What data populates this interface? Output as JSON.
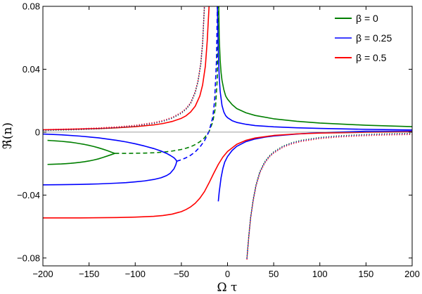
{
  "chart_data": {
    "type": "line",
    "xlabel": "Ω τ",
    "ylabel": "ℜ(n)",
    "xlim": [
      -200,
      200
    ],
    "ylim": [
      -0.085,
      0.08
    ],
    "x_ticks": [
      -200,
      -150,
      -100,
      -50,
      0,
      50,
      100,
      150,
      200
    ],
    "y_ticks": [
      -0.08,
      -0.04,
      0,
      0.04,
      0.08
    ],
    "x_tick_labels": [
      "−200",
      "−150",
      "−100",
      "−50",
      "0",
      "50",
      "100",
      "150",
      "200"
    ],
    "y_tick_labels": [
      "−0.08",
      "−0.04",
      "0",
      "0.04",
      "0.08"
    ],
    "grid": false,
    "zero_line": true,
    "legend_position": "top-right",
    "legend": [
      {
        "label": "β = 0",
        "color": "#007f00"
      },
      {
        "label": "β = 0.25",
        "color": "#0000ff"
      },
      {
        "label": "β = 0.5",
        "color": "#ff0000"
      }
    ],
    "series": [
      {
        "beta": 0,
        "color": "#007f00",
        "style": "solid",
        "x": [
          -195,
          -190,
          -185,
          -180,
          -175,
          -170,
          -165,
          -160,
          -155,
          -150,
          -145,
          -140,
          -135,
          -130,
          -125,
          -122
        ],
        "y": [
          -0.0052,
          -0.0054,
          -0.0056,
          -0.0058,
          -0.0061,
          -0.0064,
          -0.0068,
          -0.0073,
          -0.0078,
          -0.0084,
          -0.0091,
          -0.0099,
          -0.0108,
          -0.0118,
          -0.0129,
          -0.0135
        ]
      },
      {
        "beta": 0,
        "color": "#007f00",
        "style": "solid",
        "x": [
          -195,
          -190,
          -185,
          -180,
          -175,
          -170,
          -165,
          -160,
          -155,
          -150,
          -145,
          -140,
          -135,
          -130,
          -125,
          -122
        ],
        "y": [
          -0.0205,
          -0.0204,
          -0.0203,
          -0.0202,
          -0.02,
          -0.0198,
          -0.0195,
          -0.0192,
          -0.0188,
          -0.0183,
          -0.0177,
          -0.017,
          -0.0161,
          -0.0151,
          -0.0141,
          -0.0135
        ]
      },
      {
        "beta": 0,
        "color": "#007f00",
        "style": "dashed",
        "x": [
          -122,
          -110,
          -100,
          -90,
          -80,
          -70,
          -60,
          -50,
          -45,
          -40,
          -35,
          -30,
          -25,
          -20,
          -16,
          -13,
          -11,
          -10
        ],
        "y": [
          -0.0135,
          -0.0135,
          -0.0134,
          -0.0133,
          -0.0131,
          -0.0127,
          -0.012,
          -0.011,
          -0.0102,
          -0.0093,
          -0.0079,
          -0.0061,
          -0.0036,
          0.0004,
          0.0065,
          0.016,
          0.035,
          0.08
        ]
      },
      {
        "beta": 0,
        "color": "#007f00",
        "style": "solid",
        "x": [
          -9.5,
          -9,
          -8,
          -7,
          -6,
          -4,
          -2,
          0,
          5,
          10,
          20,
          30,
          50,
          75,
          100,
          150,
          200
        ],
        "y": [
          0.08,
          0.06,
          0.046,
          0.038,
          0.033,
          0.027,
          0.023,
          0.021,
          0.0175,
          0.015,
          0.0123,
          0.0106,
          0.0085,
          0.0069,
          0.0058,
          0.0044,
          0.0035
        ]
      },
      {
        "beta": 0.25,
        "color": "#0000ff",
        "style": "solid",
        "x": [
          -200,
          -180,
          -160,
          -140,
          -120,
          -110,
          -100,
          -90,
          -80,
          -72,
          -66,
          -62,
          -58,
          -56,
          -55
        ],
        "y": [
          -0.0012,
          -0.0017,
          -0.0025,
          -0.0036,
          -0.0052,
          -0.0062,
          -0.0074,
          -0.0088,
          -0.0104,
          -0.012,
          -0.0135,
          -0.0148,
          -0.0163,
          -0.0175,
          -0.0185
        ]
      },
      {
        "beta": 0.25,
        "color": "#0000ff",
        "style": "solid",
        "x": [
          -200,
          -180,
          -160,
          -140,
          -120,
          -110,
          -100,
          -90,
          -80,
          -72,
          -66,
          -62,
          -58,
          -56,
          -55
        ],
        "y": [
          -0.0335,
          -0.0334,
          -0.0332,
          -0.0329,
          -0.0324,
          -0.0321,
          -0.0316,
          -0.031,
          -0.0301,
          -0.029,
          -0.0276,
          -0.0261,
          -0.0233,
          -0.0207,
          -0.0185
        ]
      },
      {
        "beta": 0.25,
        "color": "#0000ff",
        "style": "dashed",
        "x": [
          -55,
          -50,
          -45,
          -40,
          -35,
          -30,
          -25,
          -20,
          -16,
          -14,
          -12,
          -11
        ],
        "y": [
          -0.0185,
          -0.0175,
          -0.0163,
          -0.0147,
          -0.0125,
          -0.0095,
          -0.0055,
          0.0005,
          0.0095,
          0.02,
          0.045,
          0.08
        ]
      },
      {
        "beta": 0.25,
        "color": "#0000ff",
        "style": "solid",
        "x": [
          -11,
          -10,
          -9,
          -8,
          -6,
          -4,
          -2,
          0,
          5,
          10,
          20,
          30,
          50,
          75,
          100,
          150,
          200
        ],
        "y": [
          0.08,
          0.052,
          0.035,
          0.026,
          0.017,
          0.0128,
          0.0105,
          0.0092,
          0.0073,
          0.0062,
          0.005,
          0.0042,
          0.0034,
          0.0028,
          0.0024,
          0.0018,
          0.0014
        ]
      },
      {
        "beta": 0.25,
        "color": "#0000ff",
        "style": "solid",
        "x": [
          200,
          150,
          100,
          75,
          50,
          40,
          30,
          20,
          10,
          5,
          0,
          -3,
          -5,
          -7,
          -9,
          -10
        ],
        "y": [
          0.0006,
          0.0006,
          -0.0003,
          -0.0012,
          -0.0024,
          -0.0032,
          -0.0043,
          -0.006,
          -0.009,
          -0.0116,
          -0.0155,
          -0.019,
          -0.023,
          -0.029,
          -0.038,
          -0.044
        ]
      },
      {
        "beta": 0.5,
        "color": "#ff0000",
        "style": "solid",
        "x": [
          -200,
          -180,
          -160,
          -140,
          -120,
          -100,
          -80,
          -70,
          -60,
          -50,
          -45,
          -40,
          -35,
          -30,
          -27,
          -24,
          -22,
          -20
        ],
        "y": [
          0.0015,
          0.0017,
          0.002,
          0.0023,
          0.0028,
          0.0035,
          0.0046,
          0.0055,
          0.0068,
          0.0088,
          0.0104,
          0.0128,
          0.0165,
          0.023,
          0.03,
          0.042,
          0.058,
          0.08
        ]
      },
      {
        "beta": 0.5,
        "color": "#ff0000",
        "style": "solid",
        "x": [
          -200,
          -160,
          -120,
          -100,
          -80,
          -70,
          -60,
          -50,
          -45,
          -40,
          -35,
          -30,
          -25,
          -20,
          -15,
          -10,
          -5,
          0,
          10,
          20,
          30,
          50,
          75,
          100,
          150,
          200
        ],
        "y": [
          -0.0545,
          -0.0545,
          -0.0543,
          -0.054,
          -0.0535,
          -0.053,
          -0.0521,
          -0.0505,
          -0.0492,
          -0.0475,
          -0.0452,
          -0.042,
          -0.0378,
          -0.0322,
          -0.0262,
          -0.0205,
          -0.0158,
          -0.0123,
          -0.0077,
          -0.0052,
          -0.0037,
          -0.0021,
          -0.0011,
          -0.0006,
          -0.0001,
          0.0002
        ]
      },
      {
        "beta": 0,
        "color": "#007f00",
        "style": "dotted",
        "x": [
          -200,
          -180,
          -160,
          -140,
          -120,
          -100,
          -80,
          -70,
          -60,
          -50,
          -45,
          -40,
          -35,
          -32,
          -29,
          -27,
          -25
        ],
        "y": [
          0.001,
          0.0013,
          0.0016,
          0.0021,
          0.0028,
          0.0038,
          0.0055,
          0.0068,
          0.0088,
          0.012,
          0.0145,
          0.018,
          0.025,
          0.032,
          0.043,
          0.056,
          0.08
        ]
      },
      {
        "beta": 0.25,
        "color": "#0000ff",
        "style": "dotted",
        "x": [
          -200,
          -180,
          -160,
          -140,
          -120,
          -100,
          -80,
          -70,
          -60,
          -50,
          -45,
          -40,
          -35,
          -32,
          -29,
          -27,
          -25
        ],
        "y": [
          0.0013,
          0.0016,
          0.0019,
          0.0024,
          0.0031,
          0.0041,
          0.0058,
          0.0071,
          0.0091,
          0.0123,
          0.0148,
          0.0184,
          0.0255,
          0.0325,
          0.0435,
          0.0565,
          0.0805
        ]
      },
      {
        "beta": 0.5,
        "color": "#ff0000",
        "style": "dotted",
        "x": [
          -200,
          -180,
          -160,
          -140,
          -120,
          -100,
          -80,
          -70,
          -60,
          -50,
          -45,
          -40,
          -35,
          -32,
          -29,
          -27,
          -25
        ],
        "y": [
          0.0016,
          0.0019,
          0.0022,
          0.0027,
          0.0034,
          0.0044,
          0.0061,
          0.0074,
          0.0094,
          0.0126,
          0.0151,
          0.0187,
          0.0258,
          0.0328,
          0.0438,
          0.0568,
          0.081
        ]
      },
      {
        "beta": 0,
        "color": "#007f00",
        "style": "dotted",
        "x": [
          21,
          23,
          25,
          28,
          31,
          35,
          40,
          45,
          50,
          60,
          70,
          80,
          100,
          120,
          140,
          160,
          180,
          200
        ],
        "y": [
          -0.08,
          -0.066,
          -0.054,
          -0.042,
          -0.033,
          -0.025,
          -0.019,
          -0.0152,
          -0.0125,
          -0.0088,
          -0.0066,
          -0.0051,
          -0.0033,
          -0.0023,
          -0.0017,
          -0.0012,
          -0.0009,
          -0.0007
        ]
      },
      {
        "beta": 0.25,
        "color": "#0000ff",
        "style": "dotted",
        "x": [
          21,
          23,
          25,
          28,
          31,
          35,
          40,
          45,
          50,
          60,
          70,
          80,
          100,
          120,
          140,
          160,
          180,
          200
        ],
        "y": [
          -0.0805,
          -0.0665,
          -0.0545,
          -0.0425,
          -0.0335,
          -0.0255,
          -0.0195,
          -0.0156,
          -0.0129,
          -0.0092,
          -0.007,
          -0.0055,
          -0.0037,
          -0.0027,
          -0.0021,
          -0.0016,
          -0.0013,
          -0.0011
        ]
      },
      {
        "beta": 0.5,
        "color": "#ff0000",
        "style": "dotted",
        "x": [
          21,
          23,
          25,
          28,
          31,
          35,
          40,
          45,
          50,
          60,
          70,
          80,
          100,
          120,
          140,
          160,
          180,
          200
        ],
        "y": [
          -0.081,
          -0.067,
          -0.055,
          -0.043,
          -0.034,
          -0.026,
          -0.02,
          -0.016,
          -0.0133,
          -0.0096,
          -0.0074,
          -0.0059,
          -0.0041,
          -0.0031,
          -0.0025,
          -0.002,
          -0.0017,
          -0.0015
        ]
      }
    ]
  }
}
